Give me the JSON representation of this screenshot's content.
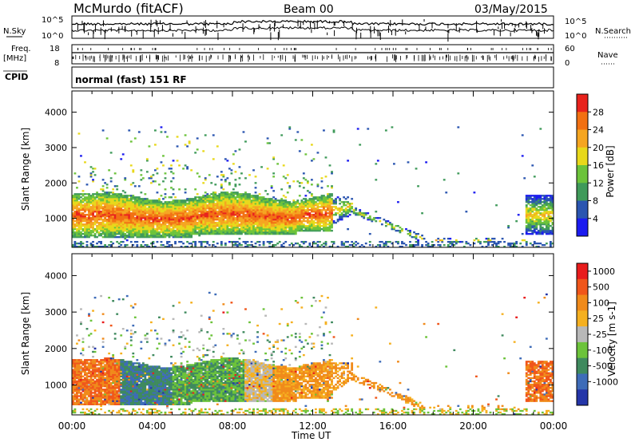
{
  "header": {
    "station": "McMurdo (fitACF)",
    "beam": "Beam 00",
    "date": "03/May/2015"
  },
  "side_labels": {
    "nsky": "N.Sky",
    "nsearch": "N.Search",
    "freq": "Freq.",
    "mhz": "[MHz]",
    "nave": "Nave",
    "cpid": "CPID",
    "cpid_value": "normal (fast) 151 RF"
  },
  "noise_axis": {
    "top": "10^5",
    "bottom": "10^0",
    "right_top": "10^5",
    "right_bottom": "10^0"
  },
  "freq_axis": {
    "left_ticks": [
      "18",
      "8"
    ],
    "right_ticks": [
      "60",
      "0"
    ]
  },
  "chart_data": [
    {
      "type": "heatmap",
      "title": "",
      "xlabel": "Time UT",
      "ylabel": "Slant Range [km]",
      "xlim": [
        0,
        24
      ],
      "ylim": [
        180,
        4600
      ],
      "x_ticks": [
        "00:00",
        "04:00",
        "08:00",
        "12:00",
        "16:00",
        "20:00",
        "00:00"
      ],
      "y_ticks": [
        "1000",
        "2000",
        "3000",
        "4000"
      ],
      "colorbar_label": "Power [dB]",
      "colorbar_ticks": [
        "4",
        "8",
        "12",
        "16",
        "20",
        "24",
        "28"
      ],
      "colorbar_colors": [
        "#1b1bf0",
        "#2a55b0",
        "#3f9a5a",
        "#6cc33a",
        "#e8d81a",
        "#f5a520",
        "#f27012",
        "#e8221c"
      ]
    },
    {
      "type": "heatmap",
      "title": "",
      "xlabel": "Time UT",
      "ylabel": "Slant Range [km]",
      "xlim": [
        0,
        24
      ],
      "ylim": [
        180,
        4600
      ],
      "x_ticks": [
        "00:00",
        "04:00",
        "08:00",
        "12:00",
        "16:00",
        "20:00",
        "00:00"
      ],
      "y_ticks": [
        "1000",
        "2000",
        "3000",
        "4000"
      ],
      "colorbar_label": "Velocity [m s-1]",
      "colorbar_ticks": [
        "1000",
        "500",
        "100",
        "25",
        "-25",
        "-100",
        "-500",
        "-1000"
      ],
      "colorbar_colors": [
        "#2435a8",
        "#3e6cb8",
        "#3f8a5e",
        "#6cc33a",
        "#b8b8b8",
        "#f5b020",
        "#f08a1a",
        "#f0561a",
        "#e81c1c"
      ]
    }
  ]
}
